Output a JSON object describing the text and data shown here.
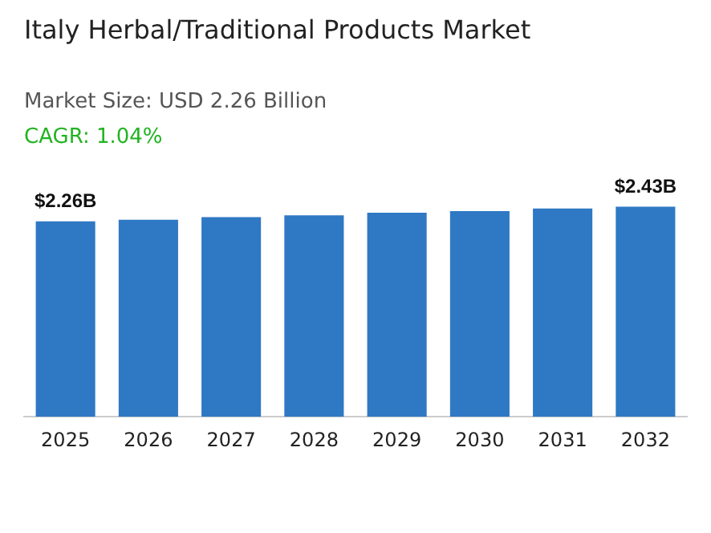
{
  "chart_data": {
    "type": "bar",
    "title": "Italy Herbal/Traditional Products Market",
    "subtitle": "Market Size: USD 2.26 Billion",
    "annotations": [
      "CAGR: 1.04%"
    ],
    "categories": [
      "2025",
      "2026",
      "2027",
      "2028",
      "2029",
      "2030",
      "2031",
      "2032"
    ],
    "values": [
      2.26,
      2.28,
      2.31,
      2.33,
      2.36,
      2.38,
      2.41,
      2.43
    ],
    "value_labels": [
      "$2.26B",
      null,
      null,
      null,
      null,
      null,
      null,
      "$2.43B"
    ],
    "color": "#2f78c4",
    "grid": false,
    "legend": false
  }
}
